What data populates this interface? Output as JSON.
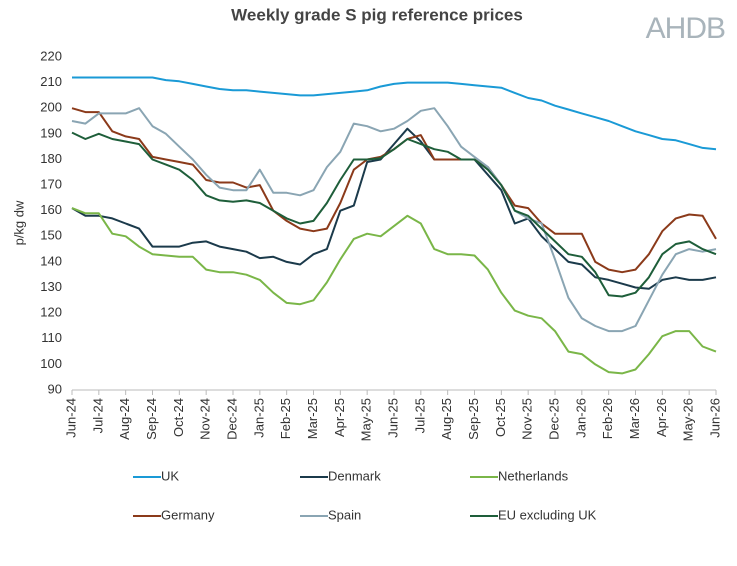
{
  "chart_data": {
    "type": "line",
    "title": "Weekly grade S pig reference prices",
    "y_label": "p/kg dw",
    "categories": [
      "Jun-24",
      null,
      "Jul-24",
      null,
      "Aug-24",
      null,
      "Sep-24",
      null,
      "Oct-24",
      null,
      "Nov-24",
      null,
      "Dec-24",
      null,
      "Jan-25",
      null,
      "Feb-25",
      null,
      "Mar-25",
      null,
      "Apr-25",
      null,
      "May-25",
      null,
      "Jun-25",
      null,
      "Jul-25",
      null,
      "Aug-25",
      null,
      "Sep-25",
      null,
      "Oct-25",
      null,
      "Nov-25",
      null,
      "Dec-25",
      null,
      "Jan-26",
      null,
      "Feb-26",
      null,
      "Mar-26",
      null,
      "Apr-26",
      null,
      "May-26",
      null,
      "Jun-26"
    ],
    "series": [
      {
        "name": "UK",
        "color": "#1a9ad6",
        "values": [
          212,
          212,
          212,
          212,
          212,
          212,
          212,
          211,
          210.5,
          209.5,
          208.5,
          207.5,
          207,
          207,
          206.5,
          206,
          205.5,
          205,
          205,
          205.5,
          206,
          206.5,
          207,
          208.5,
          209.5,
          210,
          210,
          210,
          210,
          209.5,
          209,
          208.5,
          208,
          206,
          204,
          203,
          201,
          199.5,
          198,
          196.5,
          195,
          193,
          191,
          189.5,
          188,
          187.5,
          186,
          184.5,
          184
        ]
      },
      {
        "name": "Denmark",
        "color": "#1b3a4b",
        "values": [
          161,
          158,
          158,
          157,
          155,
          153,
          146,
          146,
          146,
          147.5,
          148,
          146,
          145,
          144,
          141.5,
          142,
          140,
          139,
          143,
          145,
          160,
          162,
          179,
          180,
          186,
          192,
          187,
          180,
          180,
          180,
          180,
          174,
          168,
          155,
          157,
          150,
          145,
          140,
          139,
          134,
          133,
          131.5,
          130,
          129.5,
          133,
          134,
          133,
          133,
          134
        ]
      },
      {
        "name": "Netherlands",
        "color": "#7ab648",
        "values": [
          161,
          159,
          159,
          151,
          150,
          146,
          143,
          142.5,
          142,
          142,
          137,
          136,
          136,
          135,
          133,
          128,
          124,
          123.5,
          125,
          132,
          141,
          149,
          151,
          150,
          154,
          158,
          155,
          145,
          143,
          143,
          142.5,
          137,
          128,
          121,
          119,
          118,
          113,
          105,
          104,
          100,
          97,
          96.5,
          98,
          104,
          111,
          113,
          113,
          107,
          105
        ]
      },
      {
        "name": "Germany",
        "color": "#8b3a1a",
        "values": [
          200,
          198.5,
          198.5,
          191,
          189,
          188,
          181,
          180,
          179,
          178,
          172,
          171,
          171,
          169,
          170,
          160,
          156,
          153,
          152,
          153,
          163,
          176,
          180,
          181,
          184,
          188,
          189.5,
          180,
          180,
          180,
          180,
          177,
          170,
          162,
          161,
          155,
          151,
          151,
          151,
          140,
          137,
          136,
          137,
          143,
          152,
          157,
          158.5,
          158,
          149
        ]
      },
      {
        "name": "Spain",
        "color": "#8aa5b3",
        "values": [
          195,
          194,
          198,
          198,
          198,
          200,
          193,
          190,
          185,
          180,
          174,
          169,
          168,
          168,
          176,
          167,
          167,
          166,
          168,
          177,
          183,
          194,
          193,
          191,
          192,
          195,
          199,
          200,
          193,
          185,
          181,
          177,
          170,
          160,
          157,
          155,
          141,
          126,
          118,
          115,
          113,
          113,
          115,
          125,
          135,
          143,
          145,
          144,
          145
        ]
      },
      {
        "name": "EU excluding UK",
        "color": "#1e5e3a",
        "values": [
          190.5,
          188,
          190,
          188,
          187,
          186,
          180,
          178,
          176,
          172,
          166,
          164,
          163.5,
          164,
          163,
          160,
          157,
          155,
          156,
          163,
          172,
          180,
          180,
          180.5,
          184,
          188,
          186,
          184,
          183,
          180,
          180,
          176,
          170,
          160,
          158,
          153,
          148,
          143,
          142,
          136,
          127,
          126.5,
          128,
          134,
          143,
          147,
          148,
          145,
          143
        ]
      }
    ],
    "ylim": [
      90,
      220
    ],
    "yticks": [
      90,
      100,
      110,
      120,
      130,
      140,
      150,
      160,
      170,
      180,
      190,
      200,
      210,
      220
    ],
    "grid": false
  },
  "logo": "AHDB"
}
